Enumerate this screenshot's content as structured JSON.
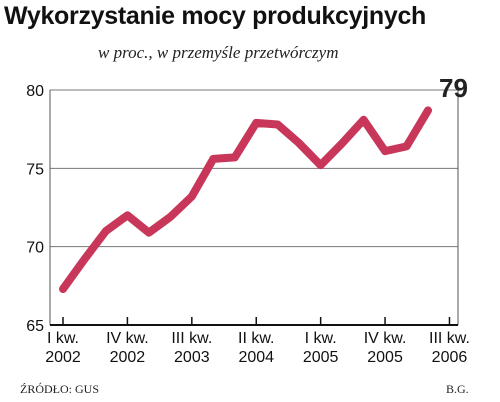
{
  "chart_data": {
    "type": "line",
    "title": "Wykorzystanie mocy produkcyjnych",
    "subtitle": "w proc., w przemyśle przetwórczym",
    "ylim": [
      65,
      80
    ],
    "yticks": [
      65,
      70,
      75,
      80
    ],
    "grid": true,
    "x_ticks": [
      {
        "line1": "I kw.",
        "line2": "2002",
        "index": 0
      },
      {
        "line1": "IV kw.",
        "line2": "2002",
        "index": 3
      },
      {
        "line1": "III kw.",
        "line2": "2003",
        "index": 6
      },
      {
        "line1": "II kw.",
        "line2": "2004",
        "index": 9
      },
      {
        "line1": "I kw.",
        "line2": "2005",
        "index": 12
      },
      {
        "line1": "IV kw.",
        "line2": "2005",
        "index": 15
      },
      {
        "line1": "III kw.",
        "line2": "2006",
        "index": 18
      }
    ],
    "series": [
      {
        "values": [
          67.3,
          69.2,
          71.0,
          72.0,
          70.9,
          71.9,
          73.2,
          75.6,
          75.7,
          77.9,
          77.8,
          76.6,
          75.2,
          76.6,
          78.1,
          76.1,
          76.4,
          78.7
        ],
        "color": "#c8375a"
      }
    ],
    "annotation": {
      "text": "79",
      "index": 18
    }
  },
  "source": "ŹRÓDŁO: GUS",
  "credit": "B.G."
}
